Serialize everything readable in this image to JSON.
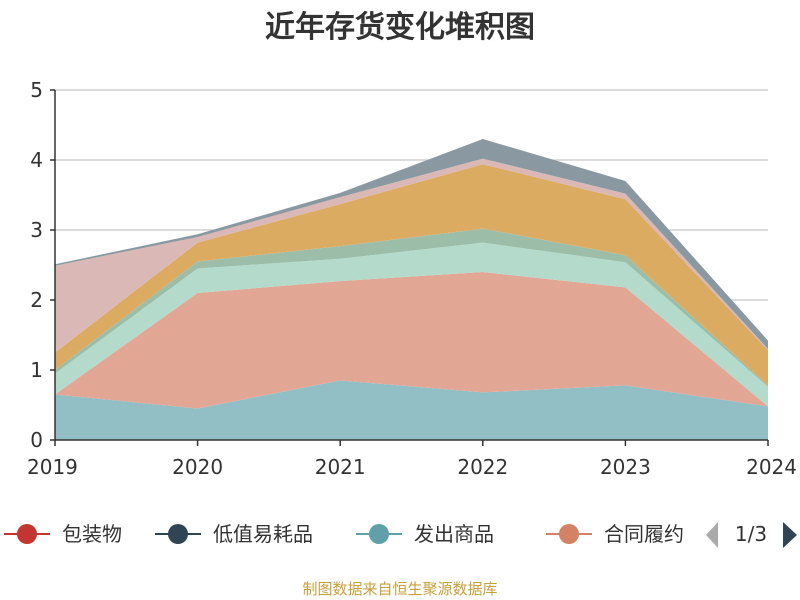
{
  "chart_data": {
    "type": "area",
    "stacked": true,
    "title": "近年存货变化堆积图",
    "ylabel": "",
    "x": [
      "2019",
      "2020",
      "2021",
      "2022",
      "2023",
      "2024"
    ],
    "ylim": [
      0,
      5
    ],
    "yticks": [
      0,
      1,
      2,
      3,
      4,
      5
    ],
    "grid": true,
    "series": [
      {
        "key": "s1",
        "color": "#91bfc5",
        "values": [
          0.65,
          0.45,
          0.85,
          0.68,
          0.78,
          0.48
        ]
      },
      {
        "key": "s2",
        "color": "#e2a695",
        "values": [
          0.0,
          1.65,
          1.42,
          1.72,
          1.4,
          0.0
        ]
      },
      {
        "key": "s3",
        "color": "#b3dacb",
        "values": [
          0.3,
          0.35,
          0.32,
          0.42,
          0.36,
          0.28
        ]
      },
      {
        "key": "s4",
        "color": "#9cbda8",
        "values": [
          0.05,
          0.1,
          0.18,
          0.2,
          0.1,
          0.02
        ]
      },
      {
        "key": "s5",
        "color": "#dcab62",
        "values": [
          0.25,
          0.27,
          0.6,
          0.92,
          0.8,
          0.5
        ]
      },
      {
        "key": "s6",
        "color": "#d9b8b5",
        "values": [
          1.24,
          0.08,
          0.1,
          0.08,
          0.08,
          0.02
        ]
      },
      {
        "key": "s7",
        "color": "#8a99a1",
        "values": [
          0.02,
          0.04,
          0.06,
          0.28,
          0.18,
          0.12
        ]
      }
    ]
  },
  "legend": {
    "items": [
      {
        "label": "包装物",
        "color": "#c23531"
      },
      {
        "label": "低值易耗品",
        "color": "#2f4554"
      },
      {
        "label": "发出商品",
        "color": "#61a0a8"
      },
      {
        "label": "合同履约",
        "color": "#d48265"
      }
    ],
    "pager": "1/3",
    "prev_color": "#aaaaaa",
    "next_color": "#2f4554"
  },
  "footer": {
    "text": "制图数据来自恒生聚源数据库"
  }
}
